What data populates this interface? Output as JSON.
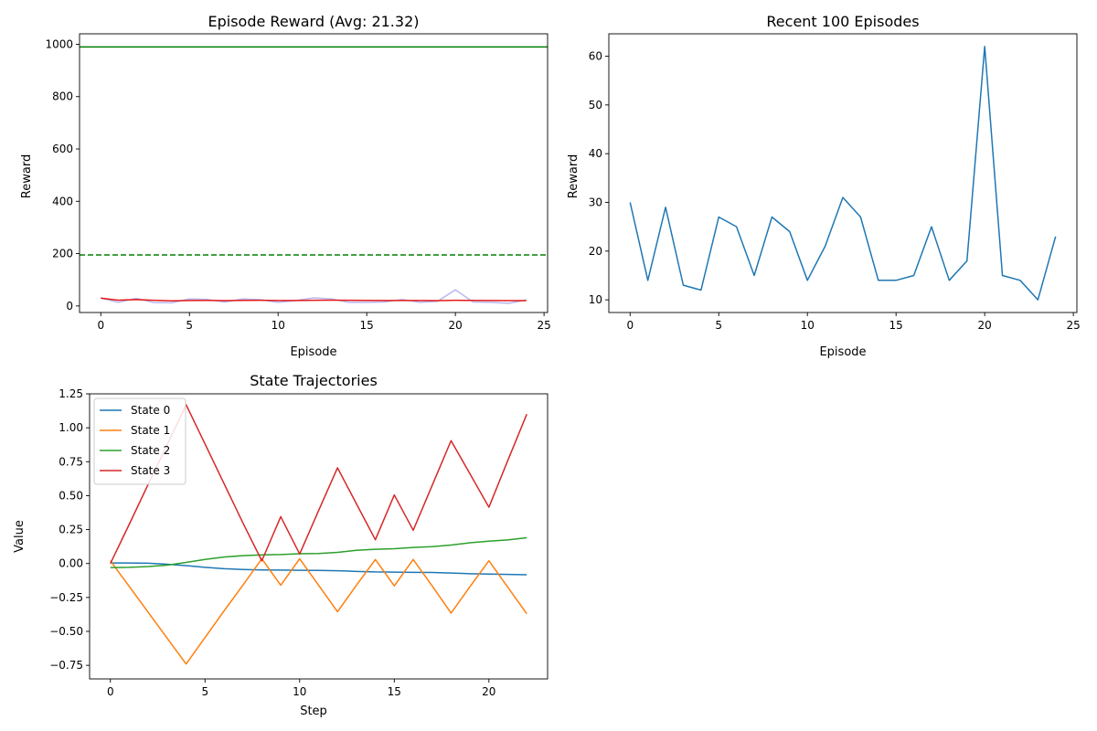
{
  "chart_data": [
    {
      "id": "reward",
      "type": "line",
      "title": "Episode Reward (Avg: 21.32)",
      "xlabel": "Episode",
      "ylabel": "Reward",
      "xlim": [
        -1.2,
        25.2
      ],
      "ylim": [
        -25,
        1040
      ],
      "xticks": [
        0,
        5,
        10,
        15,
        20,
        25
      ],
      "yticks": [
        0,
        200,
        400,
        600,
        800,
        1000
      ],
      "x": [
        0,
        1,
        2,
        3,
        4,
        5,
        6,
        7,
        8,
        9,
        10,
        11,
        12,
        13,
        14,
        15,
        16,
        17,
        18,
        19,
        20,
        21,
        22,
        23,
        24
      ],
      "series": [
        {
          "values": [
            30,
            14,
            29,
            13,
            12,
            27,
            25,
            15,
            27,
            24,
            14,
            21,
            31,
            27,
            14,
            14,
            15,
            25,
            14,
            18,
            62,
            15,
            14,
            10,
            23
          ],
          "color": "#b8b8f0",
          "width": 1.5
        },
        {
          "values": [
            30,
            22,
            24.3,
            21.5,
            19.6,
            20.8,
            21.4,
            20.6,
            21.3,
            21.6,
            21,
            21,
            21.6,
            22,
            21.5,
            21.1,
            20.7,
            21,
            20.7,
            20.6,
            21.6,
            21.2,
            20.9,
            20.4,
            20.5
          ],
          "color": "#e31a1c",
          "width": 1.5
        }
      ],
      "hlines": [
        {
          "y": 990,
          "color": "#008000",
          "dash": "",
          "width": 1.5
        },
        {
          "y": 195,
          "color": "#008000",
          "dash": "6,3",
          "width": 1.5
        }
      ]
    },
    {
      "id": "recent",
      "type": "line",
      "title": "Recent 100 Episodes",
      "xlabel": "Episode",
      "ylabel": "Reward",
      "xlim": [
        -1.2,
        25.2
      ],
      "ylim": [
        7.4,
        64.6
      ],
      "xticks": [
        0,
        5,
        10,
        15,
        20,
        25
      ],
      "yticks": [
        10,
        20,
        30,
        40,
        50,
        60
      ],
      "x": [
        0,
        1,
        2,
        3,
        4,
        5,
        6,
        7,
        8,
        9,
        10,
        11,
        12,
        13,
        14,
        15,
        16,
        17,
        18,
        19,
        20,
        21,
        22,
        23,
        24
      ],
      "series": [
        {
          "values": [
            30,
            14,
            29,
            13,
            12,
            27,
            25,
            15,
            27,
            24,
            14,
            21,
            31,
            27,
            14,
            14,
            15,
            25,
            14,
            18,
            62,
            15,
            14,
            10,
            23
          ],
          "color": "#1f77b4",
          "width": 1.5
        }
      ],
      "hlines": []
    },
    {
      "id": "states",
      "type": "line",
      "title": "State Trajectories",
      "xlabel": "Step",
      "ylabel": "Value",
      "xlim": [
        -1.1,
        23.1
      ],
      "ylim": [
        -0.85,
        1.25
      ],
      "xticks": [
        0,
        5,
        10,
        15,
        20
      ],
      "yticks": [
        -0.75,
        -0.5,
        -0.25,
        0.0,
        0.25,
        0.5,
        0.75,
        1.0,
        1.25
      ],
      "ytick_labels": [
        "−0.75",
        "−0.50",
        "−0.25",
        "0.00",
        "0.25",
        "0.50",
        "0.75",
        "1.00",
        "1.25"
      ],
      "x": [
        0,
        1,
        2,
        3,
        4,
        5,
        6,
        7,
        8,
        9,
        10,
        11,
        12,
        13,
        14,
        15,
        16,
        17,
        18,
        19,
        20,
        21,
        22
      ],
      "legend": "upper-left",
      "series": [
        {
          "name": "State 0",
          "values": [
            0.004,
            0.004,
            0.002,
            -0.005,
            -0.015,
            -0.028,
            -0.038,
            -0.044,
            -0.047,
            -0.048,
            -0.05,
            -0.051,
            -0.053,
            -0.058,
            -0.062,
            -0.063,
            -0.065,
            -0.066,
            -0.07,
            -0.075,
            -0.078,
            -0.08,
            -0.083
          ],
          "color": "#1f77b4",
          "width": 1.5
        },
        {
          "name": "State 1",
          "values": [
            0.02,
            -0.17,
            -0.36,
            -0.55,
            -0.74,
            -0.545,
            -0.35,
            -0.16,
            0.035,
            -0.16,
            0.035,
            -0.16,
            -0.355,
            -0.16,
            0.03,
            -0.165,
            0.03,
            -0.165,
            -0.365,
            -0.17,
            0.02,
            -0.175,
            -0.37
          ],
          "color": "#ff7f0e",
          "width": 1.5
        },
        {
          "name": "State 2",
          "values": [
            -0.03,
            -0.028,
            -0.022,
            -0.012,
            0.008,
            0.03,
            0.048,
            0.058,
            0.064,
            0.066,
            0.072,
            0.074,
            0.082,
            0.097,
            0.105,
            0.109,
            0.118,
            0.124,
            0.136,
            0.153,
            0.165,
            0.174,
            0.19
          ],
          "color": "#2ca02c",
          "width": 1.5
        },
        {
          "name": "State 3",
          "values": [
            0.0,
            0.29,
            0.585,
            0.875,
            1.17,
            0.88,
            0.59,
            0.3,
            0.02,
            0.345,
            0.07,
            0.39,
            0.705,
            0.44,
            0.175,
            0.505,
            0.245,
            0.575,
            0.905,
            0.66,
            0.415,
            0.76,
            1.1
          ],
          "color": "#d62728",
          "width": 1.5
        }
      ],
      "hlines": []
    }
  ]
}
